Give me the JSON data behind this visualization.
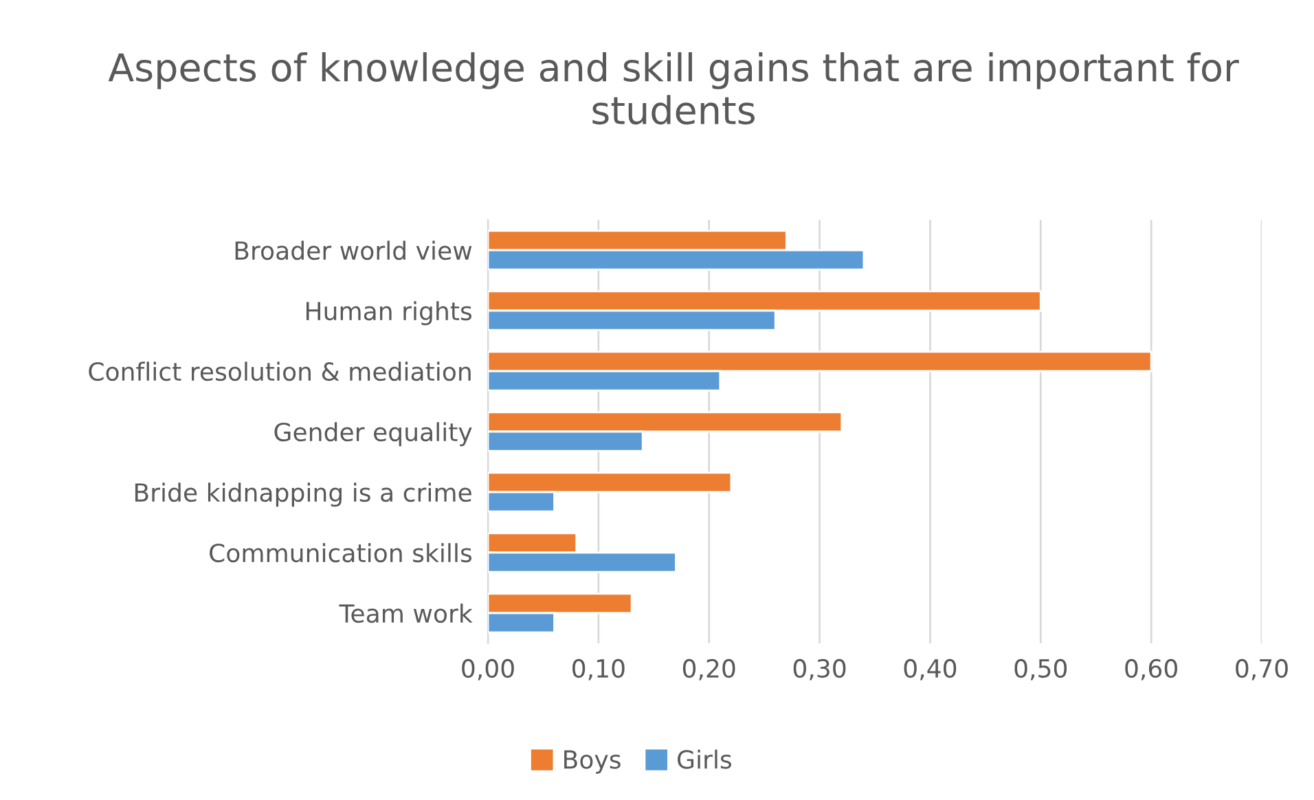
{
  "chart_data": {
    "type": "bar",
    "orientation": "horizontal",
    "title": "Aspects of knowledge and skill gains that are important for students",
    "categories": [
      "Broader world view",
      "Human rights",
      "Conflict resolution & mediation",
      "Gender equality",
      "Bride kidnapping is a crime",
      "Communication skills",
      "Team work"
    ],
    "series": [
      {
        "name": "Boys",
        "color": "#ed7d31",
        "values": [
          0.27,
          0.5,
          0.6,
          0.32,
          0.22,
          0.08,
          0.13
        ]
      },
      {
        "name": "Girls",
        "color": "#5b9bd5",
        "values": [
          0.34,
          0.26,
          0.21,
          0.14,
          0.06,
          0.17,
          0.06
        ]
      }
    ],
    "xlim": [
      0,
      0.7
    ],
    "xticks": [
      {
        "value": 0,
        "label": "0,00"
      },
      {
        "value": 0.1,
        "label": "0,10"
      },
      {
        "value": 0.2,
        "label": "0,20"
      },
      {
        "value": 0.3,
        "label": "0,30"
      },
      {
        "value": 0.4,
        "label": "0,40"
      },
      {
        "value": 0.5,
        "label": "0,50"
      },
      {
        "value": 0.6,
        "label": "0,60"
      },
      {
        "value": 0.7,
        "label": "0,70"
      }
    ],
    "grid": "x",
    "legend": "bottom"
  }
}
